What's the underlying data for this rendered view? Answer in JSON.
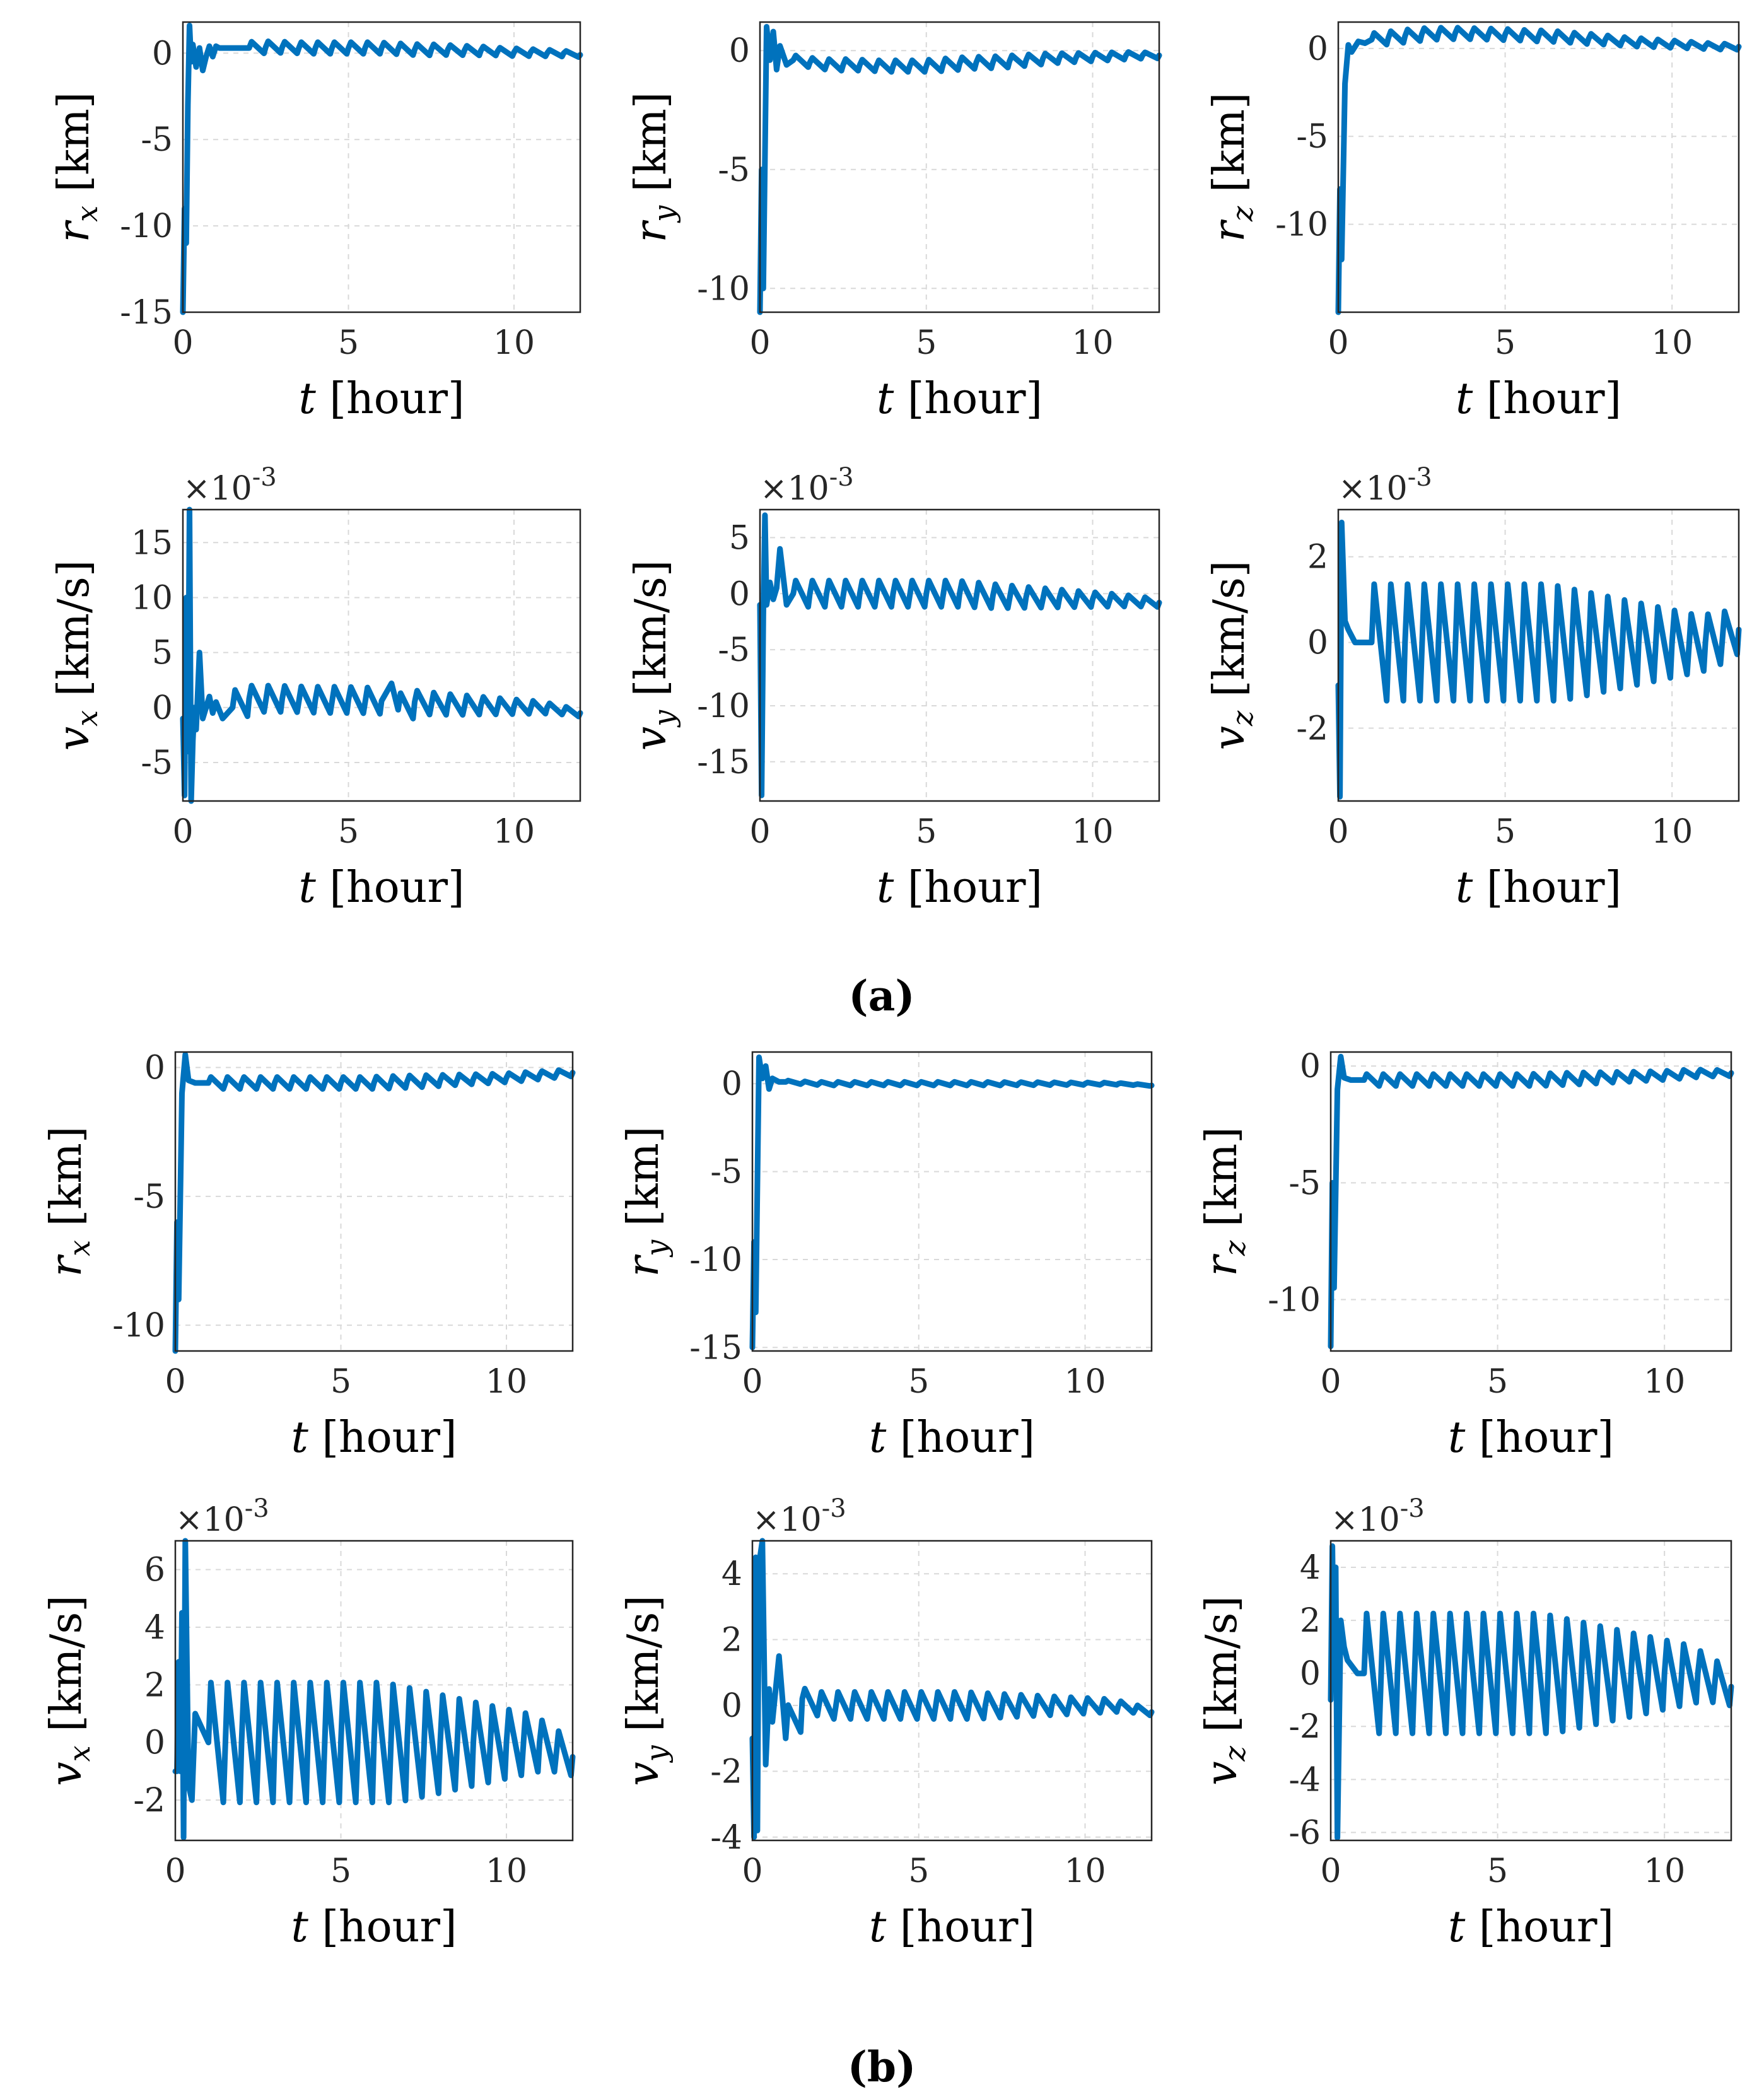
{
  "figure_labels": {
    "a": "(a)",
    "b": "(b)"
  },
  "series_color": "#0072bd",
  "chart_data": [
    {
      "id": "a-rx",
      "type": "line",
      "group": "a",
      "title": "",
      "xlabel": "t [hour]",
      "ylabel_sym": "r",
      "ylabel_sub": "x",
      "ylabel_unit": "[km]",
      "multiplier": "",
      "xlim": [
        0,
        12
      ],
      "ylim": [
        -15,
        1.8
      ],
      "xticks": [
        0,
        5,
        10
      ],
      "yticks": [
        0,
        -5,
        -10,
        -15
      ],
      "ytick_labels": [
        "0",
        "-5",
        "-10",
        "-15"
      ],
      "xtick_labels": [
        "0",
        "5",
        "10"
      ],
      "series": [
        {
          "name": "r_x",
          "x": [
            0,
            0.05,
            0.1,
            0.15,
            0.2,
            0.25,
            0.3,
            0.4,
            0.5,
            0.6,
            0.7,
            0.8,
            0.9,
            1.0,
            1.1,
            1.3,
            1.6,
            2.0,
            2.5,
            3.0,
            3.5,
            4.0,
            4.5,
            5.0,
            5.5,
            6.0,
            6.5,
            7.0,
            7.5,
            8.0,
            8.5,
            9.0,
            9.5,
            10.0,
            10.5,
            11.0,
            11.5,
            12.0
          ],
          "y": [
            -15,
            -9,
            -11,
            -3,
            1.6,
            -0.5,
            0.5,
            -0.8,
            0.3,
            -1.0,
            -0.2,
            0.4,
            -0.2,
            0.4,
            0.3,
            0.3,
            0.3,
            0.3,
            0.35,
            0.35,
            0.3,
            0.3,
            0.3,
            0.3,
            0.3,
            0.3,
            0.25,
            0.2,
            0.2,
            0.2,
            0.15,
            0.15,
            0.1,
            0.05,
            0.05,
            0.0,
            0.0,
            -0.1
          ]
        }
      ]
    },
    {
      "id": "a-ry",
      "type": "line",
      "group": "a",
      "title": "",
      "xlabel": "t [hour]",
      "ylabel_sym": "r",
      "ylabel_sub": "y",
      "ylabel_unit": "[km]",
      "multiplier": "",
      "xlim": [
        0,
        12
      ],
      "ylim": [
        -11,
        1.2
      ],
      "xticks": [
        0,
        5,
        10
      ],
      "yticks": [
        0,
        -5,
        -10
      ],
      "ytick_labels": [
        "0",
        "-5",
        "-10"
      ],
      "xtick_labels": [
        "0",
        "5",
        "10"
      ],
      "series": [
        {
          "name": "r_y",
          "x": [
            0,
            0.05,
            0.1,
            0.2,
            0.3,
            0.4,
            0.5,
            0.6,
            0.8,
            1.0,
            1.5,
            2.0,
            2.5,
            3.0,
            3.5,
            4.0,
            4.5,
            5.0,
            5.5,
            6.0,
            6.5,
            7.0,
            7.5,
            8.0,
            8.5,
            9.0,
            9.5,
            10.0,
            10.5,
            11.0,
            11.5,
            12.0
          ],
          "y": [
            -11,
            -5,
            -10,
            1.0,
            -0.4,
            0.8,
            -0.8,
            0.2,
            -0.6,
            -0.4,
            -0.5,
            -0.6,
            -0.6,
            -0.6,
            -0.65,
            -0.65,
            -0.65,
            -0.65,
            -0.6,
            -0.55,
            -0.5,
            -0.5,
            -0.45,
            -0.4,
            -0.35,
            -0.3,
            -0.3,
            -0.25,
            -0.25,
            -0.2,
            -0.2,
            -0.2
          ]
        }
      ]
    },
    {
      "id": "a-rz",
      "type": "line",
      "group": "a",
      "title": "",
      "xlabel": "t [hour]",
      "ylabel_sym": "r",
      "ylabel_sub": "z",
      "ylabel_unit": "[km]",
      "multiplier": "",
      "xlim": [
        0,
        12
      ],
      "ylim": [
        -15,
        1.5
      ],
      "xticks": [
        0,
        5,
        10
      ],
      "yticks": [
        0,
        -5,
        -10
      ],
      "ytick_labels": [
        "0",
        "-5",
        "-10"
      ],
      "xtick_labels": [
        "0",
        "5",
        "10"
      ],
      "series": [
        {
          "name": "r_z",
          "x": [
            0,
            0.05,
            0.1,
            0.2,
            0.3,
            0.4,
            0.6,
            0.8,
            1.0,
            1.5,
            2.0,
            2.5,
            3.0,
            3.5,
            4.0,
            4.5,
            5.0,
            5.5,
            6.0,
            6.5,
            7.0,
            7.5,
            8.0,
            8.5,
            9.0,
            9.5,
            10.0,
            10.5,
            11.0,
            11.5,
            12.0
          ],
          "y": [
            -15,
            -8,
            -12,
            -2,
            0.2,
            -0.2,
            0.4,
            0.3,
            0.5,
            0.6,
            0.7,
            0.8,
            0.85,
            0.85,
            0.85,
            0.8,
            0.8,
            0.75,
            0.7,
            0.7,
            0.6,
            0.55,
            0.5,
            0.4,
            0.35,
            0.3,
            0.25,
            0.2,
            0.15,
            0.1,
            0.1
          ]
        }
      ]
    },
    {
      "id": "a-vx",
      "type": "line",
      "group": "a",
      "title": "",
      "xlabel": "t [hour]",
      "ylabel_sym": "v",
      "ylabel_sub": "x",
      "ylabel_unit": "[km/s]",
      "multiplier": "×10",
      "multiplier_exp": "-3",
      "xlim": [
        0,
        12
      ],
      "ylim": [
        -8.5,
        18
      ],
      "xticks": [
        0,
        5,
        10
      ],
      "yticks": [
        15,
        10,
        5,
        0,
        -5
      ],
      "ytick_labels": [
        "15",
        "10",
        "5",
        "0",
        "-5"
      ],
      "xtick_labels": [
        "0",
        "5",
        "10"
      ],
      "series": [
        {
          "name": "v_x",
          "x": [
            0,
            0.05,
            0.1,
            0.15,
            0.2,
            0.25,
            0.3,
            0.35,
            0.4,
            0.5,
            0.6,
            0.8,
            0.9,
            1.0,
            1.2,
            1.5,
            2.0,
            3.0,
            4.0,
            5.0,
            6.0,
            6.3,
            6.5,
            7.0,
            8.0,
            9.0,
            10.0,
            11.0,
            12.0
          ],
          "y": [
            -1,
            -8,
            10,
            -4,
            18,
            -8.5,
            -3,
            0,
            -2,
            5,
            -1,
            1,
            -0.5,
            0.5,
            -1,
            0,
            0.8,
            0.8,
            0.7,
            0.7,
            0.6,
            2.2,
            -0.2,
            0.5,
            0.3,
            0.2,
            0.1,
            0.0,
            -0.5
          ]
        }
      ]
    },
    {
      "id": "a-vy",
      "type": "line",
      "group": "a",
      "title": "",
      "xlabel": "t [hour]",
      "ylabel_sym": "v",
      "ylabel_sub": "y",
      "ylabel_unit": "[km/s]",
      "multiplier": "×10",
      "multiplier_exp": "-3",
      "xlim": [
        0,
        12
      ],
      "ylim": [
        -18.5,
        7.5
      ],
      "xticks": [
        0,
        5,
        10
      ],
      "yticks": [
        5,
        0,
        -5,
        -10,
        -15
      ],
      "ytick_labels": [
        "5",
        "0",
        "-5",
        "-10",
        "-15"
      ],
      "xtick_labels": [
        "0",
        "5",
        "10"
      ],
      "series": [
        {
          "name": "v_y",
          "x": [
            0,
            0.05,
            0.1,
            0.15,
            0.2,
            0.3,
            0.4,
            0.5,
            0.6,
            0.8,
            1.0,
            1.5,
            2.0,
            3.0,
            4.0,
            5.0,
            6.0,
            7.0,
            8.0,
            9.0,
            10.0,
            11.0,
            12.0
          ],
          "y": [
            -1,
            -18,
            -2,
            7,
            -1,
            1,
            -0.5,
            0.5,
            4,
            -1,
            0,
            0,
            0,
            0,
            0,
            0,
            0,
            -0.2,
            -0.3,
            -0.4,
            -0.5,
            -0.6,
            -0.8
          ]
        }
      ]
    },
    {
      "id": "a-vz",
      "type": "line",
      "group": "a",
      "title": "",
      "xlabel": "t [hour]",
      "ylabel_sym": "v",
      "ylabel_sub": "z",
      "ylabel_unit": "[km/s]",
      "multiplier": "×10",
      "multiplier_exp": "-3",
      "xlim": [
        0,
        12
      ],
      "ylim": [
        -3.7,
        3.1
      ],
      "xticks": [
        0,
        5,
        10
      ],
      "yticks": [
        2,
        0,
        -2
      ],
      "ytick_labels": [
        "2",
        "0",
        "-2"
      ],
      "xtick_labels": [
        "0",
        "5",
        "10"
      ],
      "series": [
        {
          "name": "v_z",
          "x": [
            0,
            0.05,
            0.1,
            0.2,
            0.3,
            0.5,
            1,
            2,
            3,
            4,
            5,
            6,
            7,
            8,
            9,
            10,
            11,
            12
          ],
          "y": [
            -1,
            -3.6,
            2.8,
            0.5,
            0.3,
            0,
            0,
            0,
            0,
            0,
            0,
            0,
            0,
            0,
            0,
            0,
            0,
            0.3
          ]
        }
      ]
    },
    {
      "id": "b-rx",
      "type": "line",
      "group": "b",
      "title": "",
      "xlabel": "t [hour]",
      "ylabel_sym": "r",
      "ylabel_sub": "x",
      "ylabel_unit": "[km]",
      "multiplier": "",
      "xlim": [
        0,
        12
      ],
      "ylim": [
        -11,
        0.6
      ],
      "xticks": [
        0,
        5,
        10
      ],
      "yticks": [
        0,
        -5,
        -10
      ],
      "ytick_labels": [
        "0",
        "-5",
        "-10"
      ],
      "xtick_labels": [
        "0",
        "5",
        "10"
      ],
      "series": [
        {
          "name": "r_x",
          "x": [
            0,
            0.05,
            0.1,
            0.2,
            0.3,
            0.4,
            0.6,
            0.8,
            1.0,
            2,
            3,
            4,
            5,
            6,
            7,
            8,
            9,
            10,
            11,
            12
          ],
          "y": [
            -11,
            -6,
            -9,
            -1,
            0.5,
            -0.5,
            -0.6,
            -0.6,
            -0.6,
            -0.6,
            -0.6,
            -0.6,
            -0.6,
            -0.6,
            -0.55,
            -0.5,
            -0.45,
            -0.4,
            -0.3,
            -0.2
          ]
        }
      ]
    },
    {
      "id": "b-ry",
      "type": "line",
      "group": "b",
      "title": "",
      "xlabel": "t [hour]",
      "ylabel_sym": "r",
      "ylabel_sub": "y",
      "ylabel_unit": "[km]",
      "multiplier": "",
      "xlim": [
        0,
        12
      ],
      "ylim": [
        -15.2,
        1.8
      ],
      "xticks": [
        0,
        5,
        10
      ],
      "yticks": [
        0,
        -5,
        -10,
        -15
      ],
      "ytick_labels": [
        "0",
        "-5",
        "-10",
        "-15"
      ],
      "xtick_labels": [
        "0",
        "5",
        "10"
      ],
      "series": [
        {
          "name": "r_y",
          "x": [
            0,
            0.05,
            0.1,
            0.2,
            0.3,
            0.4,
            0.5,
            0.6,
            0.8,
            1.0,
            2,
            3,
            4,
            5,
            6,
            7,
            8,
            9,
            10,
            11,
            12
          ],
          "y": [
            -15,
            -9,
            -13,
            1.5,
            0.3,
            1.0,
            -0.3,
            0.3,
            0.1,
            0.1,
            0,
            0,
            0,
            0,
            0,
            0,
            0,
            0,
            0,
            0,
            -0.1
          ]
        }
      ]
    },
    {
      "id": "b-rz",
      "type": "line",
      "group": "b",
      "title": "",
      "xlabel": "t [hour]",
      "ylabel_sym": "r",
      "ylabel_sub": "z",
      "ylabel_unit": "[km]",
      "multiplier": "",
      "xlim": [
        0,
        12
      ],
      "ylim": [
        -12.2,
        0.6
      ],
      "xticks": [
        0,
        5,
        10
      ],
      "yticks": [
        0,
        -5,
        -10
      ],
      "ytick_labels": [
        "0",
        "-5",
        "-10"
      ],
      "xtick_labels": [
        "0",
        "5",
        "10"
      ],
      "series": [
        {
          "name": "r_z",
          "x": [
            0,
            0.05,
            0.1,
            0.2,
            0.3,
            0.4,
            0.6,
            0.8,
            1.0,
            2,
            3,
            4,
            5,
            6,
            7,
            8,
            9,
            10,
            11,
            12
          ],
          "y": [
            -12,
            -5,
            -9.5,
            -1,
            0.4,
            -0.5,
            -0.6,
            -0.6,
            -0.6,
            -0.6,
            -0.6,
            -0.6,
            -0.6,
            -0.6,
            -0.55,
            -0.5,
            -0.45,
            -0.4,
            -0.3,
            -0.3
          ]
        }
      ]
    },
    {
      "id": "b-vx",
      "type": "line",
      "group": "b",
      "title": "",
      "xlabel": "t [hour]",
      "ylabel_sym": "v",
      "ylabel_sub": "x",
      "ylabel_unit": "[km/s]",
      "multiplier": "×10",
      "multiplier_exp": "-3",
      "xlim": [
        0,
        12
      ],
      "ylim": [
        -3.4,
        7
      ],
      "xticks": [
        0,
        5,
        10
      ],
      "yticks": [
        6,
        4,
        2,
        0,
        -2
      ],
      "ytick_labels": [
        "6",
        "4",
        "2",
        "0",
        "-2"
      ],
      "xtick_labels": [
        "0",
        "5",
        "10"
      ],
      "series": [
        {
          "name": "v_x",
          "x": [
            0,
            0.05,
            0.1,
            0.15,
            0.2,
            0.25,
            0.3,
            0.4,
            0.5,
            0.6,
            1,
            2,
            3,
            4,
            5,
            6,
            7,
            8,
            9,
            10,
            11,
            12
          ],
          "y": [
            -1,
            -1,
            2.8,
            -1,
            4.5,
            -3.3,
            7,
            -1.5,
            -2,
            1,
            0,
            0,
            0,
            0,
            0,
            0,
            0,
            0,
            0,
            0,
            0,
            -0.5
          ]
        }
      ]
    },
    {
      "id": "b-vy",
      "type": "line",
      "group": "b",
      "title": "",
      "xlabel": "t [hour]",
      "ylabel_sym": "v",
      "ylabel_sub": "y",
      "ylabel_unit": "[km/s]",
      "multiplier": "×10",
      "multiplier_exp": "-3",
      "xlim": [
        0,
        12
      ],
      "ylim": [
        -4.1,
        5
      ],
      "xticks": [
        0,
        5,
        10
      ],
      "yticks": [
        4,
        2,
        0,
        -2,
        -4
      ],
      "ytick_labels": [
        "4",
        "2",
        "0",
        "-2",
        "-4"
      ],
      "xtick_labels": [
        "0",
        "5",
        "10"
      ],
      "series": [
        {
          "name": "v_y",
          "x": [
            0,
            0.05,
            0.1,
            0.15,
            0.2,
            0.3,
            0.4,
            0.5,
            0.6,
            0.8,
            1.0,
            1.5,
            2,
            3,
            4,
            5,
            6,
            7,
            8,
            9,
            10,
            11,
            12
          ],
          "y": [
            -1,
            -4,
            4.5,
            -3.8,
            4.3,
            5,
            -1.8,
            0.5,
            -0.5,
            1.5,
            -1,
            0.2,
            0,
            0,
            0,
            0,
            0,
            0,
            0,
            0,
            0,
            0,
            -0.2
          ]
        }
      ]
    },
    {
      "id": "b-vz",
      "type": "line",
      "group": "b",
      "title": "",
      "xlabel": "t [hour]",
      "ylabel_sym": "v",
      "ylabel_sub": "z",
      "ylabel_unit": "[km/s]",
      "multiplier": "×10",
      "multiplier_exp": "-3",
      "xlim": [
        0,
        12
      ],
      "ylim": [
        -6.3,
        5
      ],
      "xticks": [
        0,
        5,
        10
      ],
      "yticks": [
        4,
        2,
        0,
        -2,
        -4,
        -6
      ],
      "ytick_labels": [
        "4",
        "2",
        "0",
        "-2",
        "-4",
        "-6"
      ],
      "xtick_labels": [
        "0",
        "5",
        "10"
      ],
      "series": [
        {
          "name": "v_z",
          "x": [
            0,
            0.05,
            0.1,
            0.15,
            0.2,
            0.3,
            0.4,
            0.5,
            0.8,
            1,
            2,
            3,
            4,
            5,
            6,
            7,
            8,
            9,
            10,
            11,
            12
          ],
          "y": [
            -1,
            4.8,
            -0.5,
            4,
            -6.2,
            2,
            1,
            0.5,
            0,
            0,
            0,
            0,
            0,
            0,
            0,
            0,
            0,
            0,
            0,
            0,
            -0.5
          ]
        }
      ]
    }
  ]
}
